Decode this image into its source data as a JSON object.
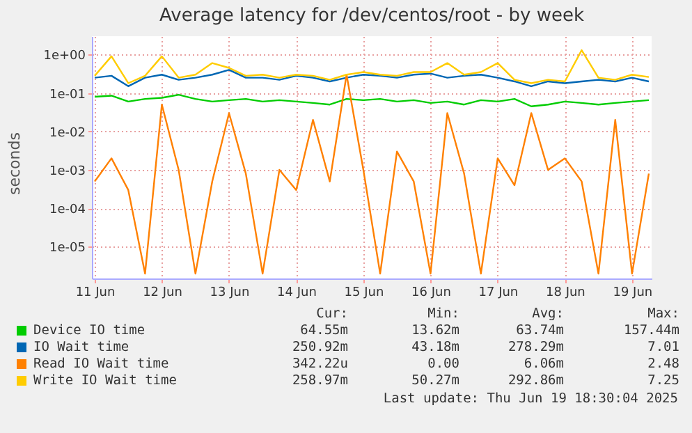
{
  "chart_data": {
    "type": "line",
    "title": "Average latency for /dev/centos/root - by week",
    "ylabel": "seconds",
    "log": "y",
    "grid": true,
    "legend": "bottom",
    "marker": "none",
    "line_style": "solid",
    "x": [
      "--06-11T00:00",
      "--06-11T06:00",
      "--06-11T12:00",
      "--06-11T18:00",
      "--06-12T00:00",
      "--06-12T06:00",
      "--06-12T12:00",
      "--06-12T18:00",
      "--06-13T00:00",
      "--06-13T06:00",
      "--06-13T12:00",
      "--06-13T18:00",
      "--06-14T00:00",
      "--06-14T06:00",
      "--06-14T12:00",
      "--06-14T18:00",
      "--06-15T00:00",
      "--06-15T06:00",
      "--06-15T12:00",
      "--06-15T18:00",
      "--06-16T00:00",
      "--06-16T06:00",
      "--06-16T12:00",
      "--06-16T18:00",
      "--06-17T00:00",
      "--06-17T06:00",
      "--06-17T12:00",
      "--06-17T18:00",
      "--06-18T00:00",
      "--06-18T06:00",
      "--06-18T12:00",
      "--06-18T18:00",
      "--06-19T00:00",
      "--06-19T06:00"
    ],
    "xlim": [
      "--06-10T23:00",
      "--06-19T07:00"
    ],
    "xticks": [
      {
        "value": "--06-11",
        "label": "11 Jun"
      },
      {
        "value": "--06-12",
        "label": "12 Jun"
      },
      {
        "value": "--06-13",
        "label": "13 Jun"
      },
      {
        "value": "--06-14",
        "label": "14 Jun"
      },
      {
        "value": "--06-15",
        "label": "15 Jun"
      },
      {
        "value": "--06-16",
        "label": "16 Jun"
      },
      {
        "value": "--06-17",
        "label": "17 Jun"
      },
      {
        "value": "--06-18",
        "label": "18 Jun"
      },
      {
        "value": "--06-19",
        "label": "19 Jun"
      }
    ],
    "ylim": [
      1.5e-06,
      3
    ],
    "yticks": [
      {
        "value": 1e-05,
        "label": "1e-05"
      },
      {
        "value": 0.0001,
        "label": "1e-04"
      },
      {
        "value": 0.001,
        "label": "1e-03"
      },
      {
        "value": 0.01,
        "label": "1e-02"
      },
      {
        "value": 0.1,
        "label": "1e-01"
      },
      {
        "value": 1,
        "label": "1e+00"
      }
    ],
    "series": [
      {
        "name": "Device IO time",
        "color": "#00cc00",
        "values": [
          0.08,
          0.085,
          0.06,
          0.07,
          0.075,
          0.09,
          0.07,
          0.06,
          0.065,
          0.07,
          0.06,
          0.065,
          0.06,
          0.055,
          0.05,
          0.07,
          0.065,
          0.07,
          0.06,
          0.065,
          0.055,
          0.06,
          0.05,
          0.065,
          0.06,
          0.07,
          0.045,
          0.05,
          0.06,
          0.055,
          0.05,
          0.055,
          0.06,
          0.065
        ]
      },
      {
        "name": "IO Wait time",
        "color": "#0066b3",
        "values": [
          0.25,
          0.28,
          0.15,
          0.25,
          0.3,
          0.22,
          0.25,
          0.3,
          0.4,
          0.25,
          0.25,
          0.22,
          0.28,
          0.25,
          0.2,
          0.25,
          0.3,
          0.28,
          0.25,
          0.3,
          0.32,
          0.25,
          0.28,
          0.3,
          0.25,
          0.2,
          0.15,
          0.2,
          0.18,
          0.2,
          0.22,
          0.2,
          0.25,
          0.2
        ]
      },
      {
        "name": "Read IO Wait time",
        "color": "#ff8000",
        "values": [
          0.0005,
          0.002,
          0.0003,
          2e-06,
          0.05,
          0.001,
          2e-06,
          0.0005,
          0.03,
          0.0008,
          2e-06,
          0.001,
          0.0003,
          0.02,
          0.0005,
          0.3,
          0.001,
          2e-06,
          0.003,
          0.0005,
          2e-06,
          0.03,
          0.0008,
          2e-06,
          0.002,
          0.0004,
          0.03,
          0.001,
          0.002,
          0.0005,
          2e-06,
          0.02,
          2e-06,
          0.0008
        ]
      },
      {
        "name": "Write IO Wait time",
        "color": "#ffcc00",
        "values": [
          0.28,
          0.9,
          0.18,
          0.28,
          0.9,
          0.25,
          0.3,
          0.6,
          0.45,
          0.28,
          0.3,
          0.25,
          0.3,
          0.28,
          0.22,
          0.3,
          0.35,
          0.3,
          0.28,
          0.35,
          0.35,
          0.6,
          0.3,
          0.35,
          0.6,
          0.22,
          0.18,
          0.22,
          0.2,
          1.3,
          0.25,
          0.22,
          0.3,
          0.26
        ]
      }
    ],
    "annotations": [
      "Cur:",
      "Min:",
      "Avg:",
      "Max:",
      "64.55m",
      "13.62m",
      "63.74m",
      "157.44m",
      "250.92m",
      "43.18m",
      "278.29m",
      "7.01",
      "342.22u",
      "0.00",
      "6.06m",
      "2.48",
      "258.97m",
      "50.27m",
      "292.86m",
      "7.25",
      "Last update: Thu Jun 19 18:30:04 2025"
    ]
  }
}
